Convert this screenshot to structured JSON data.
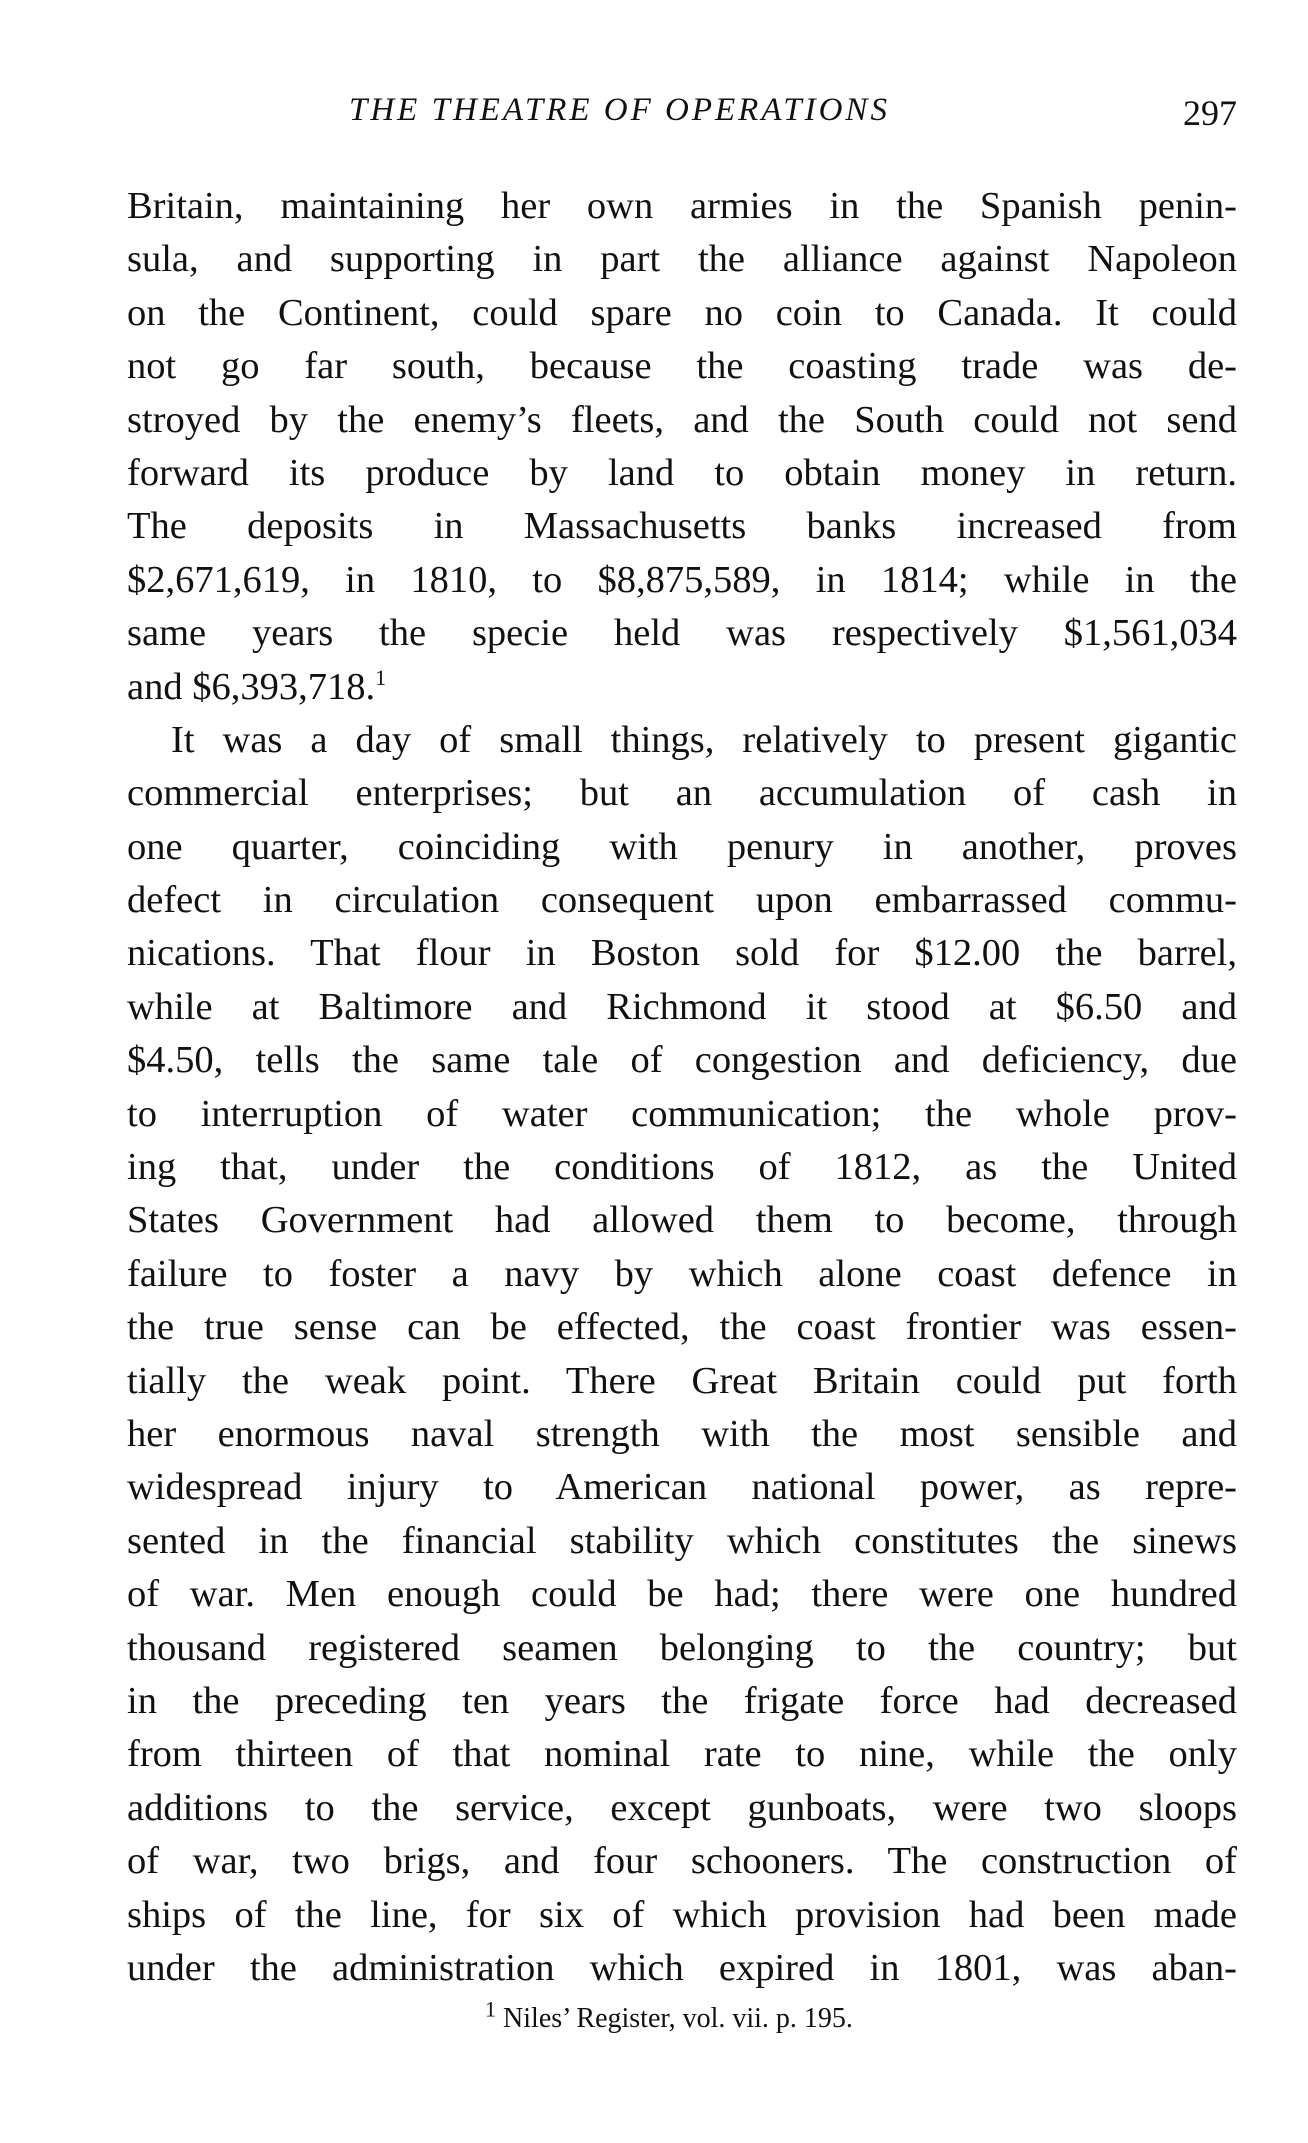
{
  "header": {
    "running_title": "THE THEATRE OF OPERATIONS",
    "page_number": "297"
  },
  "lines": [
    {
      "text": "Britain, maintaining her own armies in the Spanish penin-"
    },
    {
      "text": "sula, and supporting in part the alliance against Napoleon"
    },
    {
      "text": "on the Continent, could spare no coin to Canada.  It could"
    },
    {
      "text": "not go far south, because the coasting trade was de-"
    },
    {
      "text": "stroyed by the enemy’s fleets, and the South could not send"
    },
    {
      "text": "forward its produce by land to obtain money in return."
    },
    {
      "text": "The deposits in Massachusetts banks increased from"
    },
    {
      "text": "$2,671,619, in 1810, to $8,875,589, in 1814; while in the"
    },
    {
      "text": "same years the specie held was respectively $1,561,034"
    },
    {
      "text": "and $6,393,718.",
      "sup": "1",
      "last": true
    },
    {
      "text": "It was a day of small things, relatively to present gigantic",
      "indent": true
    },
    {
      "text": "commercial enterprises; but an accumulation of cash in"
    },
    {
      "text": "one quarter, coinciding with penury in another, proves"
    },
    {
      "text": "defect in circulation consequent upon embarrassed commu-"
    },
    {
      "text": "nications.  That flour in Boston sold for $12.00 the barrel,"
    },
    {
      "text": "while at Baltimore and Richmond it stood at $6.50 and"
    },
    {
      "text": "$4.50, tells the same tale of congestion and deficiency, due"
    },
    {
      "text": "to interruption of water communication; the whole prov-"
    },
    {
      "text": "ing that, under the conditions of 1812, as the United"
    },
    {
      "text": "States Government had allowed them to become, through"
    },
    {
      "text": "failure to foster a navy by which alone coast defence in"
    },
    {
      "text": "the true sense can be effected, the coast frontier was essen-"
    },
    {
      "text": "tially the weak point.  There Great Britain could put forth"
    },
    {
      "text": "her enormous naval strength with the most sensible and"
    },
    {
      "text": "widespread injury to American national power, as repre-"
    },
    {
      "text": "sented in the financial stability which constitutes the sinews"
    },
    {
      "text": "of war.  Men enough could be had; there were one hundred"
    },
    {
      "text": "thousand registered seamen belonging to the country; but"
    },
    {
      "text": "in the preceding ten years the frigate force had decreased"
    },
    {
      "text": "from thirteen of that nominal rate to nine, while the only"
    },
    {
      "text": "additions to the service, except gunboats, were two sloops"
    },
    {
      "text": "of war, two brigs, and four schooners.  The construction of"
    },
    {
      "text": "ships of the line, for six of which provision had been made"
    },
    {
      "text": "under the administration which expired in 1801, was aban-"
    }
  ],
  "footnote": {
    "marker": "1",
    "text": " Niles’ Register, vol. vii. p. 195."
  }
}
